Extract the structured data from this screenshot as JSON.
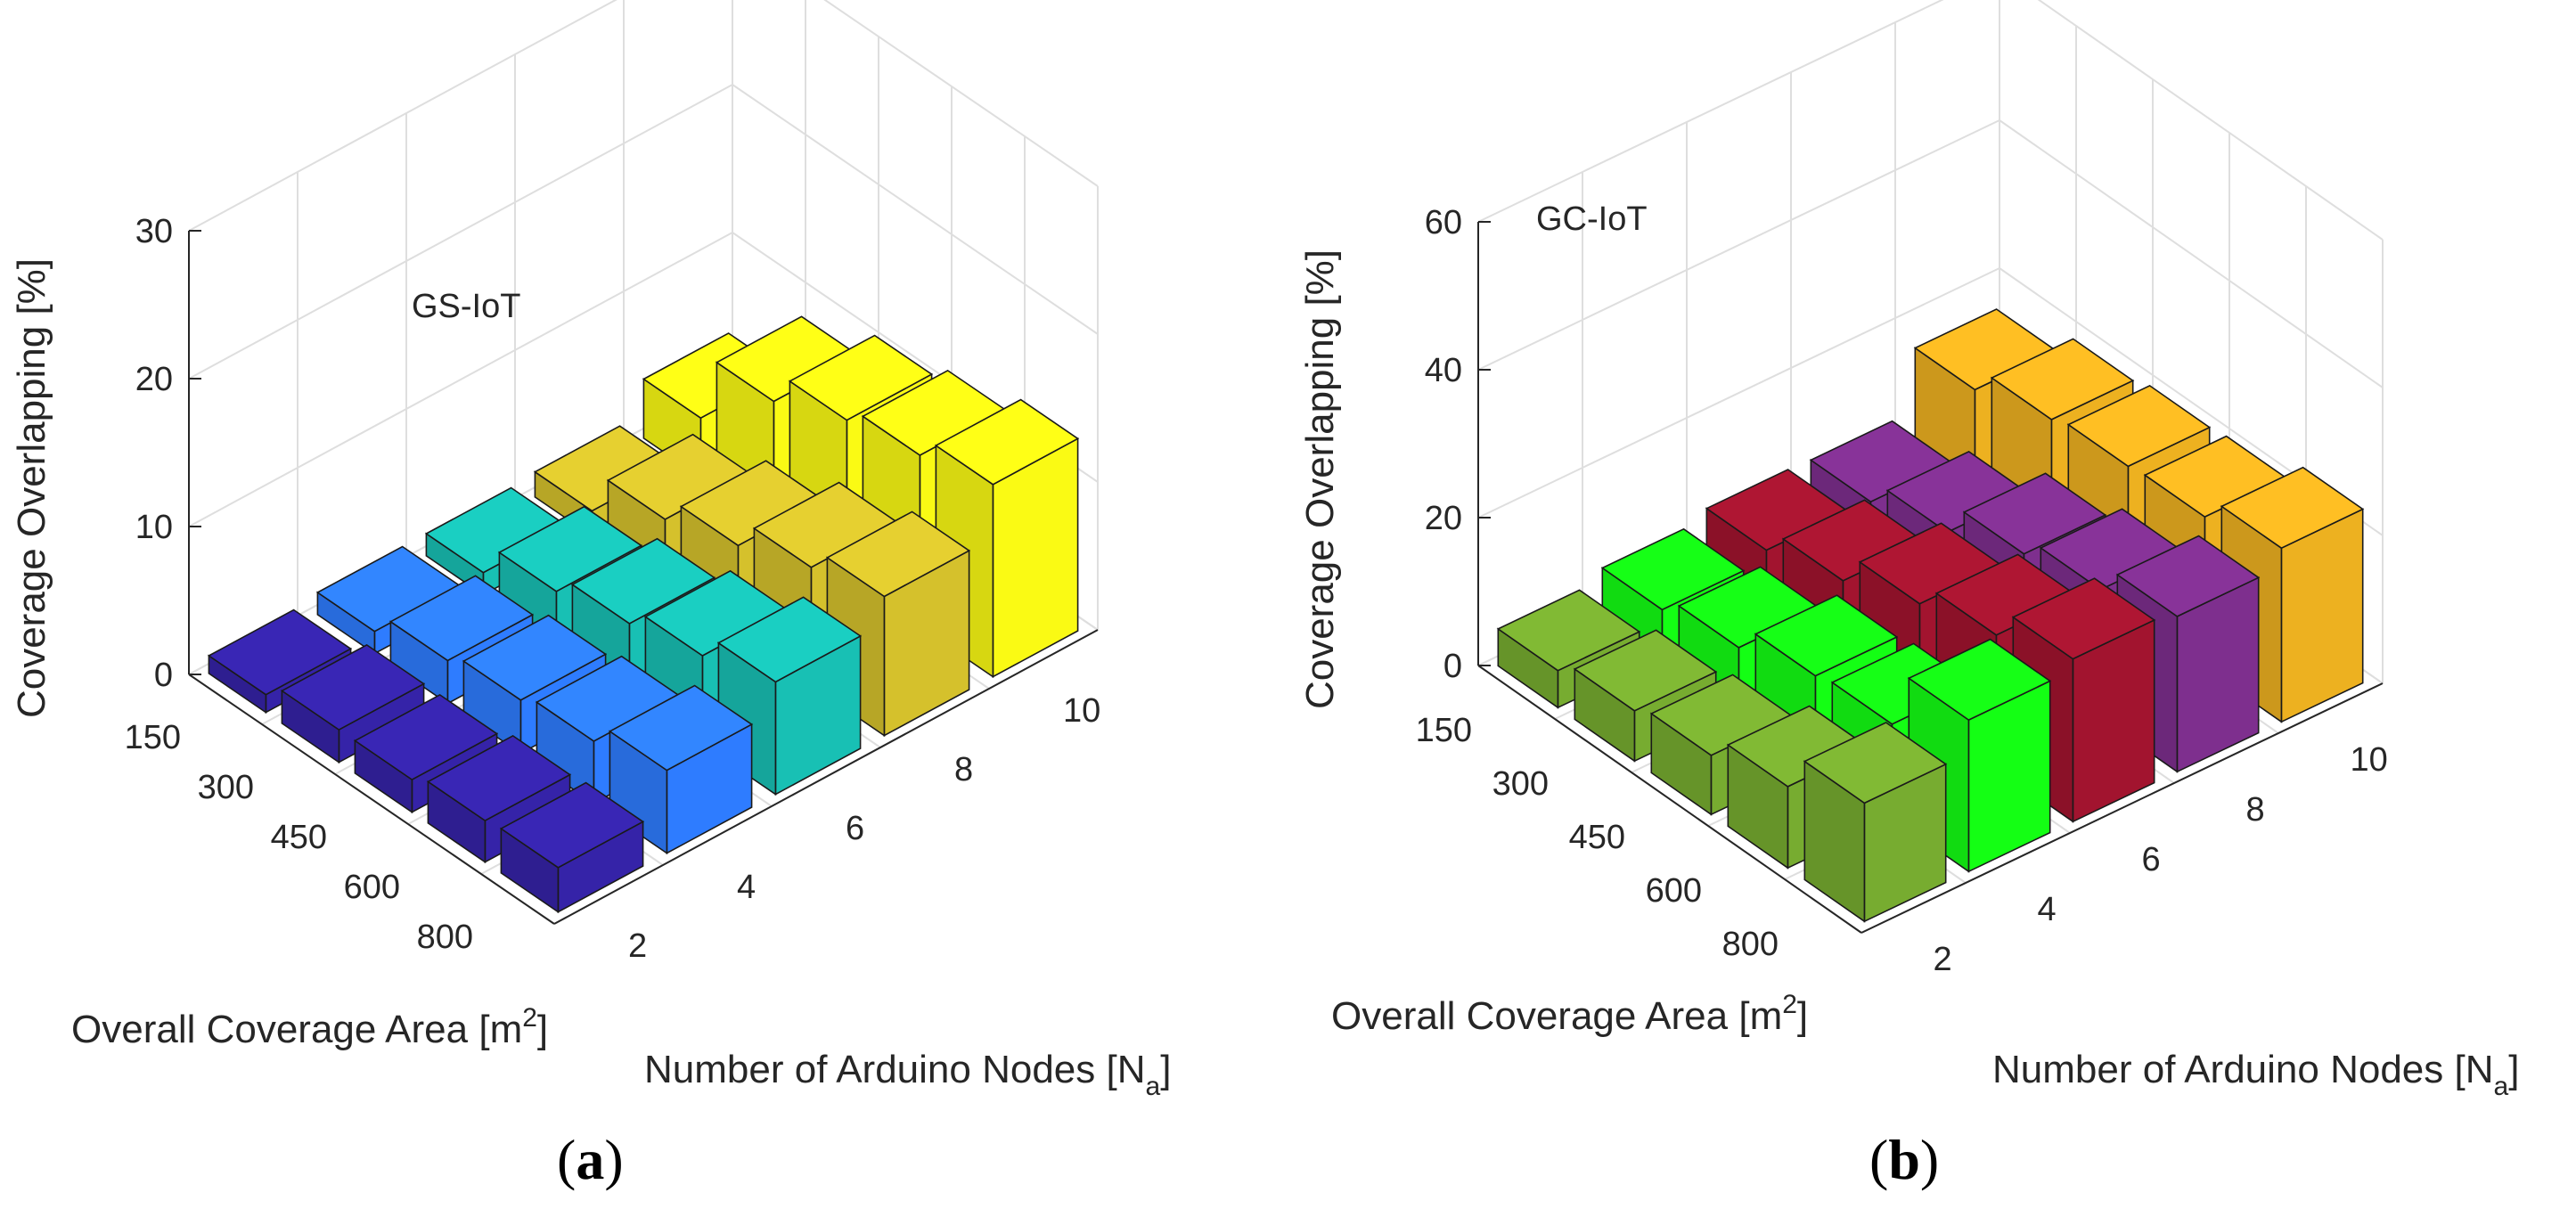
{
  "chart_data": [
    {
      "type": "bar3d",
      "panel_label": "a",
      "title": "GS-IoT",
      "zlabel": "Coverage Overlapping [%]",
      "xlabel": "Overall Coverage Area [m",
      "xlabel_sup": "2",
      "xlabel_end": "]",
      "ylabel": "Number of Arduino Nodes [N",
      "ylabel_sub": "a",
      "ylabel_end": "]",
      "x_categories": [
        "150",
        "300",
        "450",
        "600",
        "800"
      ],
      "y_categories": [
        "2",
        "4",
        "6",
        "8",
        "10"
      ],
      "zlim": [
        0,
        30
      ],
      "z_ticks": [
        "0",
        "10",
        "20",
        "30"
      ],
      "grid": true,
      "colors": [
        "#3523a8",
        "#2e7cff",
        "#18c0b4",
        "#d5c12c",
        "#fafa14"
      ],
      "values": [
        [
          1.2,
          1.5,
          1.5,
          1.7,
          4.0
        ],
        [
          2.2,
          2.9,
          3.6,
          4.5,
          8.5
        ],
        [
          2.2,
          3.6,
          4.8,
          6.1,
          10.6
        ],
        [
          2.8,
          4.2,
          6.0,
          8.0,
          11.6
        ],
        [
          3.0,
          5.6,
          7.6,
          9.4,
          13.0
        ]
      ]
    },
    {
      "type": "bar3d",
      "panel_label": "b",
      "title": "GC-IoT",
      "zlabel": "Coverage Overlapping [%]",
      "xlabel": "Overall Coverage Area [m",
      "xlabel_sup": "2",
      "xlabel_end": "]",
      "ylabel": "Number of Arduino Nodes [N",
      "ylabel_sub": "a",
      "ylabel_end": "]",
      "x_categories": [
        "150",
        "300",
        "450",
        "600",
        "800"
      ],
      "y_categories": [
        "2",
        "4",
        "6",
        "8",
        "10"
      ],
      "zlim": [
        0,
        60
      ],
      "z_ticks": [
        "0",
        "20",
        "40",
        "60"
      ],
      "grid": true,
      "colors": [
        "#77ac30",
        "#14ff14",
        "#a2142f",
        "#7e2f8e",
        "#edb120"
      ],
      "values": [
        [
          5.0,
          6.5,
          7.8,
          7.6,
          16.0
        ],
        [
          6.8,
          8.6,
          10.9,
          10.7,
          19.2
        ],
        [
          8.0,
          12.0,
          15.0,
          15.0,
          20.1
        ],
        [
          11.0,
          12.7,
          18.0,
          17.4,
          20.5
        ],
        [
          16.0,
          20.5,
          22.0,
          21.0,
          23.5
        ]
      ]
    }
  ]
}
